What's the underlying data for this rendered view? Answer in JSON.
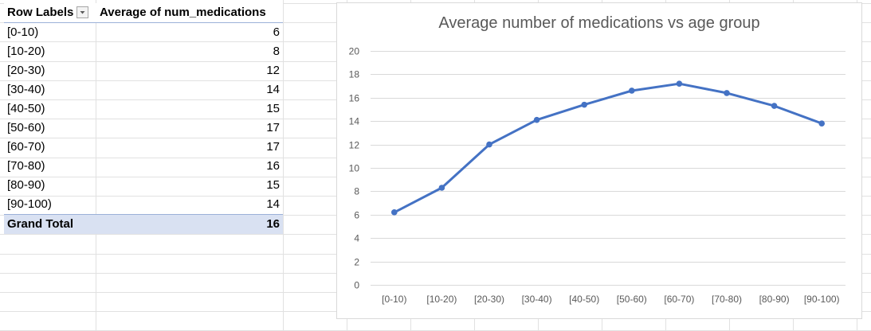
{
  "pivot": {
    "header": {
      "row_labels": "Row Labels",
      "value_field": "Average of num_medications"
    },
    "rows": [
      {
        "label": "[0-10)",
        "value": "6"
      },
      {
        "label": "[10-20)",
        "value": "8"
      },
      {
        "label": "[20-30)",
        "value": "12"
      },
      {
        "label": "[30-40)",
        "value": "14"
      },
      {
        "label": "[40-50)",
        "value": "15"
      },
      {
        "label": "[50-60)",
        "value": "17"
      },
      {
        "label": "[60-70)",
        "value": "17"
      },
      {
        "label": "[70-80)",
        "value": "16"
      },
      {
        "label": "[80-90)",
        "value": "15"
      },
      {
        "label": "[90-100)",
        "value": "14"
      }
    ],
    "total": {
      "label": "Grand Total",
      "value": "16"
    },
    "icons": {
      "filter": "dropdown-filter-icon"
    }
  },
  "chart_data": {
    "type": "line",
    "title": "Average number of medications vs age group",
    "categories": [
      "[0-10)",
      "[10-20)",
      "[20-30)",
      "[30-40)",
      "[40-50)",
      "[50-60)",
      "[60-70)",
      "[70-80)",
      "[80-90)",
      "[90-100)"
    ],
    "series": [
      {
        "values": [
          6.2,
          8.3,
          12.0,
          14.1,
          15.4,
          16.6,
          17.2,
          16.4,
          15.3,
          13.8
        ],
        "color": "#4472c4"
      }
    ],
    "ylim": [
      0,
      20
    ],
    "yticks": [
      0,
      2,
      4,
      6,
      8,
      10,
      12,
      14,
      16,
      18,
      20
    ],
    "grid": true,
    "legend": "none"
  }
}
